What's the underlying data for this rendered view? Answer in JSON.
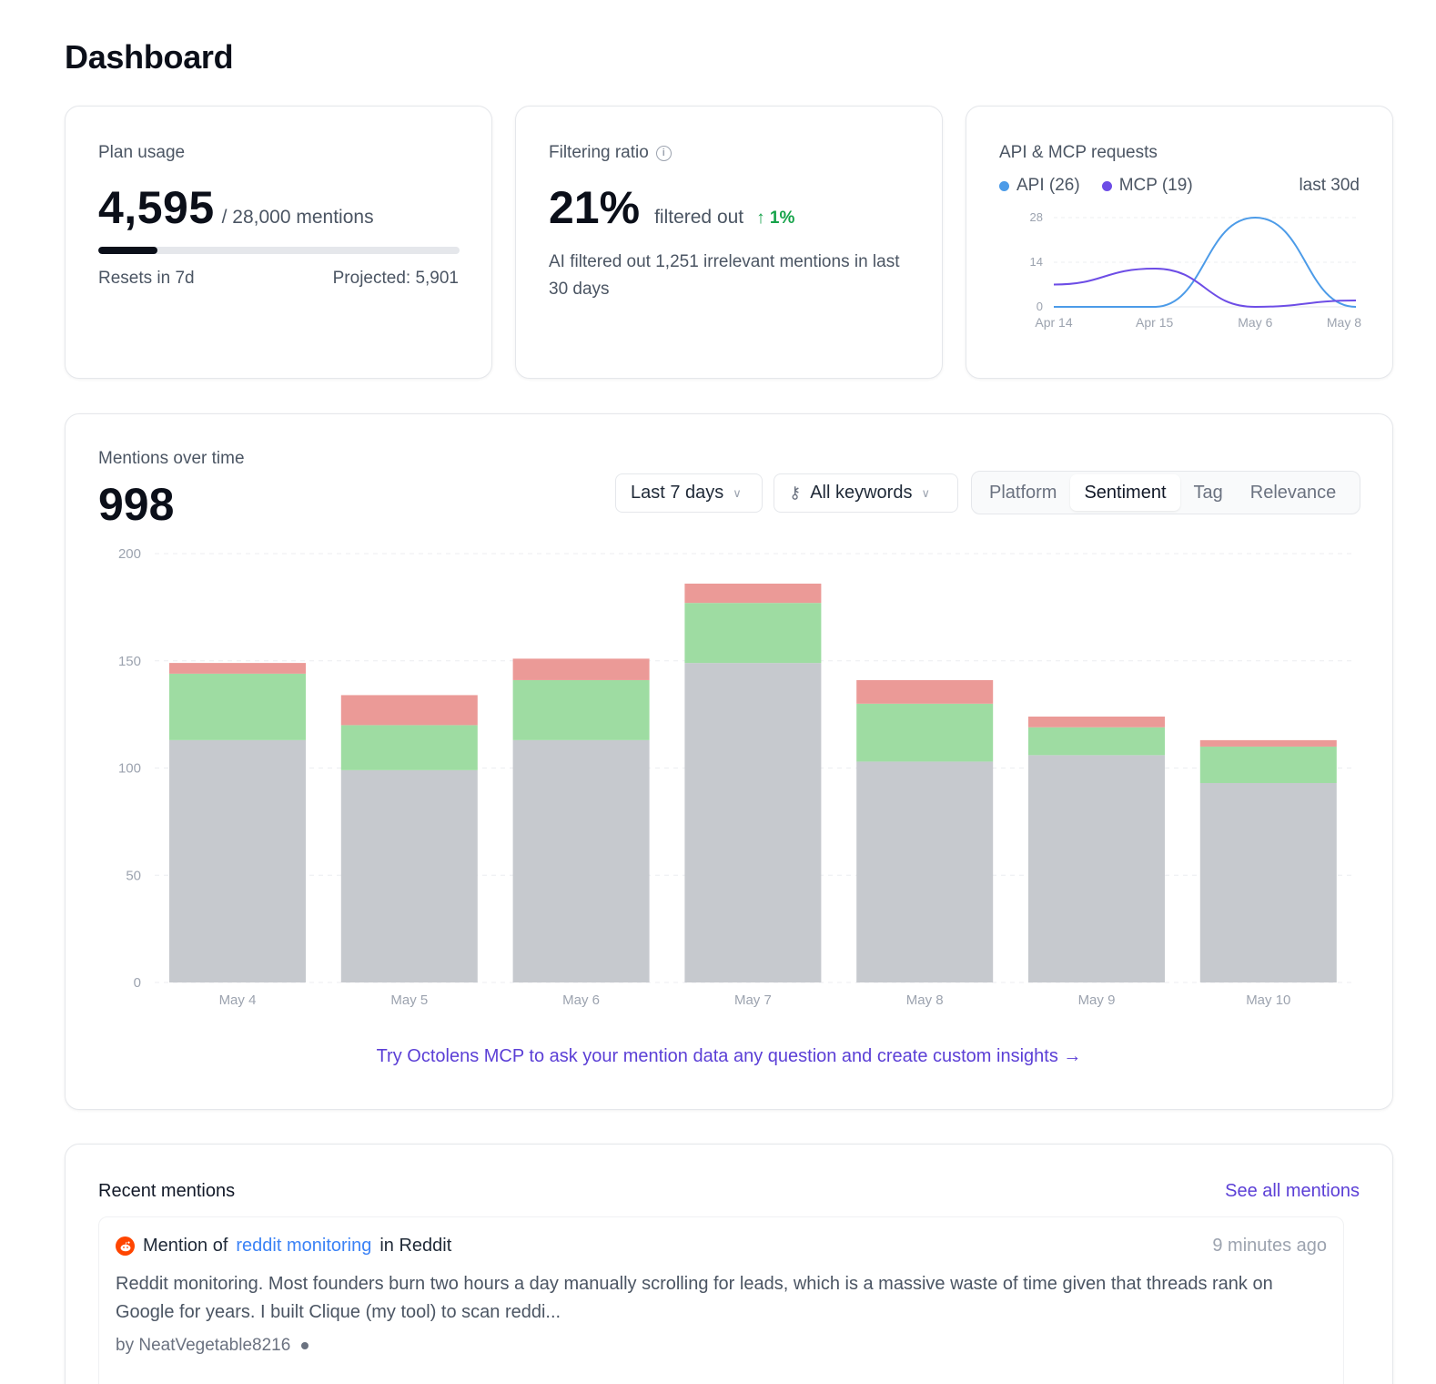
{
  "page": {
    "title": "Dashboard"
  },
  "plan_usage": {
    "label": "Plan usage",
    "value": "4,595",
    "limit_text": "/ 28,000 mentions",
    "progress_fraction": 0.164,
    "resets": "Resets in 7d",
    "projected": "Projected: 5,901"
  },
  "filtering": {
    "label": "Filtering ratio",
    "info_icon": "info-icon",
    "value": "21%",
    "suffix": "filtered out",
    "delta": "↑ 1%",
    "description": "AI filtered out 1,251 irrelevant mentions in last 30 days"
  },
  "api_requests": {
    "label": "API & MCP requests",
    "range": "last 30d",
    "legend": [
      {
        "label": "API (26)",
        "color": "#4c9be8"
      },
      {
        "label": "MCP (19)",
        "color": "#6d4de6"
      }
    ],
    "chart_data": {
      "type": "line",
      "categories": [
        "Apr 14",
        "Apr 15",
        "May 6",
        "May 8"
      ],
      "y_ticks": [
        "28",
        "14",
        "0"
      ],
      "ylim": [
        0,
        28
      ],
      "series": [
        {
          "name": "API (26)",
          "color": "#4c9be8",
          "values": [
            0,
            0,
            28,
            0
          ]
        },
        {
          "name": "MCP (19)",
          "color": "#6d4de6",
          "values": [
            7,
            12,
            0,
            2
          ]
        }
      ]
    }
  },
  "mentions": {
    "label": "Mentions over time",
    "total": "998",
    "date_filter": "Last 7 days",
    "keyword_filter": "All keywords",
    "tabs": [
      {
        "label": "Platform",
        "active": false
      },
      {
        "label": "Sentiment",
        "active": true
      },
      {
        "label": "Tag",
        "active": false
      },
      {
        "label": "Relevance",
        "active": false
      }
    ],
    "chart_data": {
      "type": "bar",
      "stacked": true,
      "categories": [
        "May 4",
        "May 5",
        "May 6",
        "May 7",
        "May 8",
        "May 9",
        "May 10"
      ],
      "y_ticks": [
        "200",
        "150",
        "100",
        "50",
        "0"
      ],
      "ylim": [
        0,
        200
      ],
      "series": [
        {
          "color": "#c6c9ce",
          "values": [
            113,
            99,
            113,
            149,
            103,
            106,
            93
          ]
        },
        {
          "color": "#9edca2",
          "values": [
            31,
            21,
            28,
            28,
            27,
            13,
            17
          ]
        },
        {
          "color": "#eb9a97",
          "values": [
            5,
            14,
            10,
            9,
            11,
            5,
            3
          ]
        }
      ]
    },
    "mcp_link": "Try Octolens MCP to ask your mention data any question and create custom insights →"
  },
  "recent": {
    "title": "Recent mentions",
    "see_all": "See all mentions",
    "items": [
      {
        "icon": "reddit-icon",
        "prefix": "Mention of",
        "keyword": "reddit monitoring",
        "in_text": "in Reddit",
        "time": "9 minutes ago",
        "body": "Reddit monitoring. Most founders burn two hours a day manually scrolling for leads, which is a massive waste of time given that threads rank on Google for years. I built Clique (my tool) to scan reddi...",
        "author": "by NeatVegetable8216"
      }
    ]
  }
}
